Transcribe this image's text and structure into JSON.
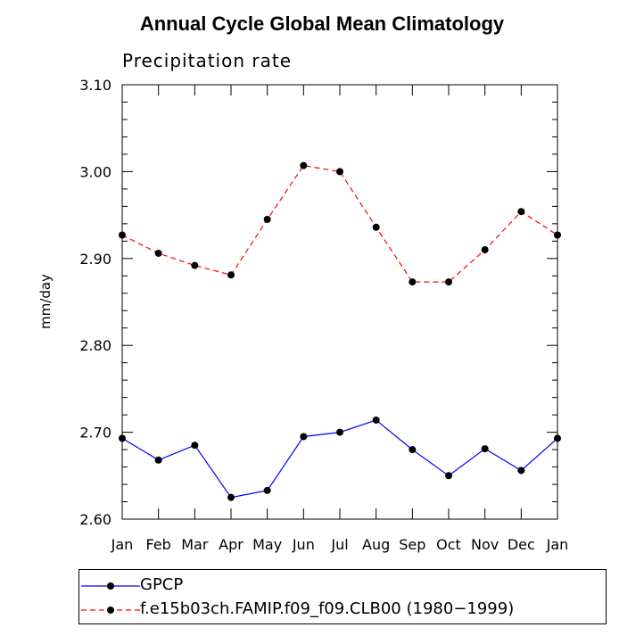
{
  "title": "Annual Cycle Global Mean Climatology",
  "subtitle": "Precipitation rate",
  "chart_data": {
    "type": "line",
    "title": "Annual Cycle Global Mean Climatology",
    "subtitle": "Precipitation rate",
    "xlabel": "",
    "ylabel": "mm/day",
    "categories": [
      "Jan",
      "Feb",
      "Mar",
      "Apr",
      "May",
      "Jun",
      "Jul",
      "Aug",
      "Sep",
      "Oct",
      "Nov",
      "Dec",
      "Jan"
    ],
    "ylim": [
      2.6,
      3.1
    ],
    "yticks": [
      "2.60",
      "2.70",
      "2.80",
      "2.90",
      "3.00",
      "3.10"
    ],
    "grid": false,
    "legend_position": "bottom",
    "series": [
      {
        "name": "GPCP",
        "color": "#0000ff",
        "line_style": "solid",
        "values": [
          2.693,
          2.668,
          2.685,
          2.625,
          2.633,
          2.695,
          2.7,
          2.714,
          2.68,
          2.65,
          2.681,
          2.656,
          2.693
        ]
      },
      {
        "name": "f.e15b03ch.FAMIP.f09_f09.CLB00 (1980−1999)",
        "color": "#ff0000",
        "line_style": "dashed",
        "values": [
          2.927,
          2.906,
          2.892,
          2.881,
          2.945,
          3.007,
          3.0,
          2.936,
          2.873,
          2.873,
          2.91,
          2.954,
          2.927
        ]
      }
    ]
  }
}
